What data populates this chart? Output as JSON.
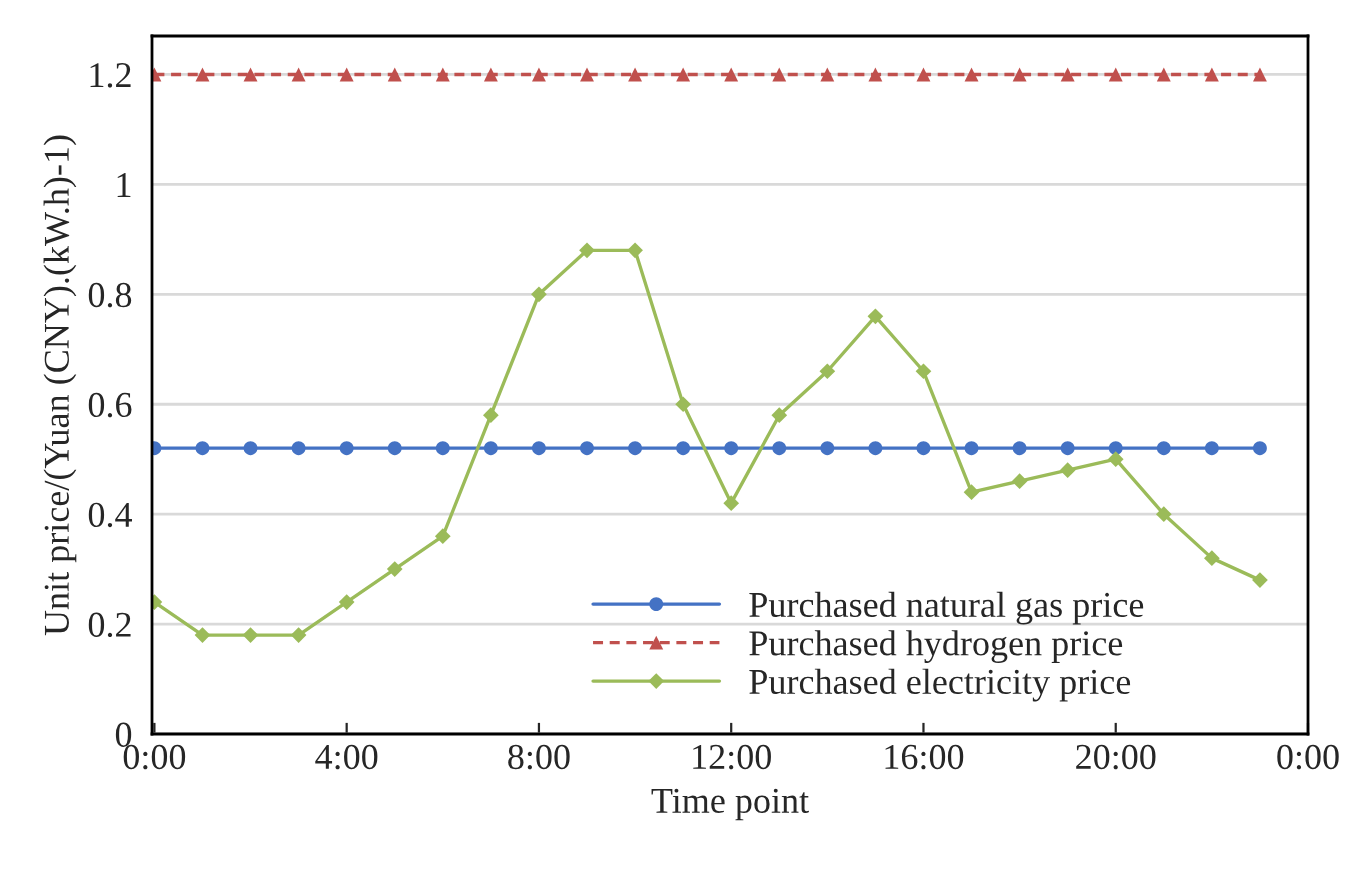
{
  "chart_data": {
    "type": "line",
    "xlabel": "Time point",
    "ylabel": "Unit price/(Yuan (CNY).(kW.h)-1)",
    "x": [
      0,
      1,
      2,
      3,
      4,
      5,
      6,
      7,
      8,
      9,
      10,
      11,
      12,
      13,
      14,
      15,
      16,
      17,
      18,
      19,
      20,
      21,
      22,
      23
    ],
    "series": [
      {
        "name": "Purchased natural gas price",
        "color": "#4472c4",
        "marker": "circle",
        "line_style": "solid",
        "values": [
          0.52,
          0.52,
          0.52,
          0.52,
          0.52,
          0.52,
          0.52,
          0.52,
          0.52,
          0.52,
          0.52,
          0.52,
          0.52,
          0.52,
          0.52,
          0.52,
          0.52,
          0.52,
          0.52,
          0.52,
          0.52,
          0.52,
          0.52,
          0.52
        ]
      },
      {
        "name": "Purchased hydrogen price",
        "color": "#c0504d",
        "marker": "triangle",
        "line_style": "dashed",
        "values": [
          1.2,
          1.2,
          1.2,
          1.2,
          1.2,
          1.2,
          1.2,
          1.2,
          1.2,
          1.2,
          1.2,
          1.2,
          1.2,
          1.2,
          1.2,
          1.2,
          1.2,
          1.2,
          1.2,
          1.2,
          1.2,
          1.2,
          1.2,
          1.2
        ]
      },
      {
        "name": "Purchased electricity price",
        "color": "#9bbb59",
        "marker": "diamond",
        "line_style": "solid",
        "values": [
          0.24,
          0.18,
          0.18,
          0.18,
          0.24,
          0.3,
          0.36,
          0.58,
          0.8,
          0.88,
          0.88,
          0.6,
          0.42,
          0.58,
          0.66,
          0.76,
          0.66,
          0.44,
          0.46,
          0.48,
          0.5,
          0.4,
          0.32,
          0.28
        ]
      }
    ],
    "xlim": [
      -0.05,
      24
    ],
    "xticks": [
      {
        "value": 0,
        "label": "0:00"
      },
      {
        "value": 4,
        "label": "4:00"
      },
      {
        "value": 8,
        "label": "8:00"
      },
      {
        "value": 12,
        "label": "12:00"
      },
      {
        "value": 16,
        "label": "16:00"
      },
      {
        "value": 20,
        "label": "20:00"
      },
      {
        "value": 24,
        "label": "0:00"
      }
    ],
    "ylim": [
      0,
      1.27
    ],
    "yticks": [
      0,
      0.2,
      0.4,
      0.6,
      0.8,
      {
        "value": 1,
        "label": "1"
      },
      1.2
    ],
    "grid": "y",
    "legend": "bottom"
  }
}
